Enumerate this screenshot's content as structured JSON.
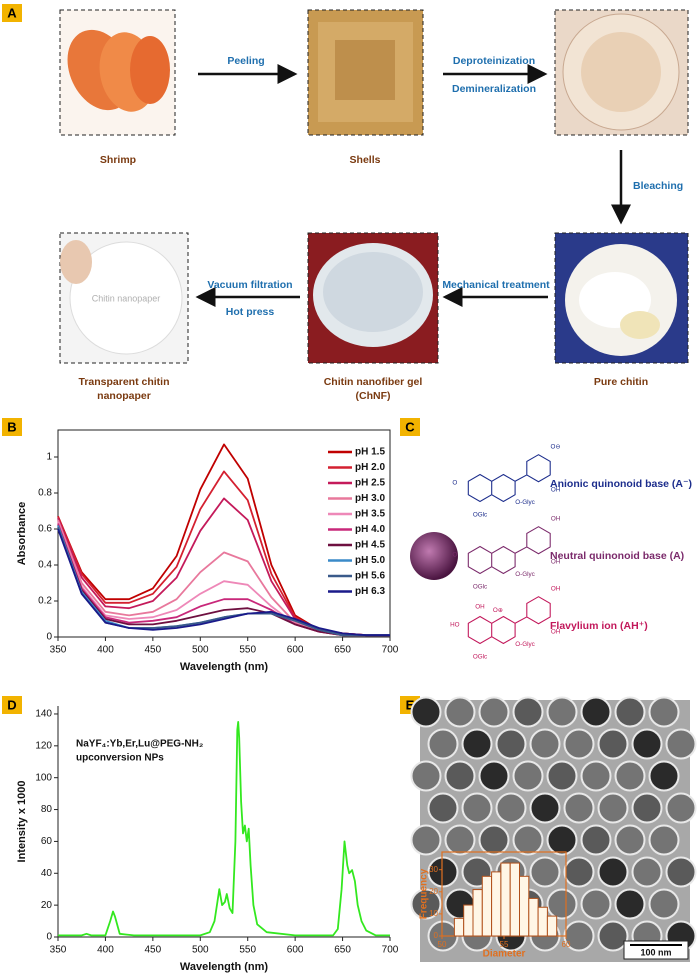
{
  "panels": {
    "a": {
      "label": "A",
      "captions": [
        {
          "lines": [
            "Shrimp"
          ]
        },
        {
          "lines": [
            "Shells"
          ]
        },
        {
          "lines": [
            "Pure chitin"
          ]
        },
        {
          "lines": [
            "Chitin nanofiber gel",
            "(ChNF)"
          ]
        },
        {
          "lines": [
            "Transparent chitin",
            "nanopaper"
          ]
        }
      ],
      "arrows": [
        {
          "labels": [
            "Peeling"
          ]
        },
        {
          "labels": [
            "Deproteinization",
            "Demineralization"
          ]
        },
        {
          "labels": [
            "Bleaching"
          ]
        },
        {
          "labels": [
            "Mechanical treatment"
          ]
        },
        {
          "labels": [
            "Vacuum filtration",
            "Hot press"
          ]
        }
      ],
      "image_text": "Chitin nanopaper"
    },
    "b": {
      "label": "B"
    },
    "c": {
      "label": "C",
      "structures": [
        {
          "name": "Anionic quinonoid base (A⁻)",
          "color": "#1c2d8c",
          "labels": [
            "O",
            "OGlc",
            "O-Glyc",
            "OH",
            "O⊖"
          ]
        },
        {
          "name": "Neutral quinonoid base (A)",
          "color": "#7b2a6b",
          "labels": [
            "O",
            "OGlc",
            "O-Glyc",
            "OH",
            "OH"
          ]
        },
        {
          "name": "Flavylium ion (AH⁺)",
          "color": "#c2185b",
          "labels": [
            "HO",
            "OGlc",
            "O-Glyc",
            "OH",
            "OH",
            "OH",
            "O⊕"
          ]
        }
      ]
    },
    "d": {
      "label": "D"
    },
    "e": {
      "label": "E",
      "scale_bar": "100 nm"
    }
  },
  "chart_data": [
    {
      "type": "line",
      "x_label": "Wavelength (nm)",
      "y_label": "Absorbance",
      "xlim": [
        350,
        700
      ],
      "xticks": [
        350,
        400,
        450,
        500,
        550,
        600,
        650,
        700
      ],
      "ylim": [
        0,
        1.15
      ],
      "yticks": [
        0,
        0.2,
        0.4,
        0.6,
        0.8,
        1
      ],
      "legend": "upper right",
      "x": [
        350,
        375,
        400,
        425,
        450,
        475,
        500,
        525,
        550,
        575,
        600,
        625,
        650,
        675,
        700
      ],
      "series": [
        {
          "name": "pH 1.5",
          "color": "#c00000",
          "values": [
            0.67,
            0.36,
            0.21,
            0.21,
            0.27,
            0.45,
            0.82,
            1.07,
            0.88,
            0.4,
            0.12,
            0.04,
            0.02,
            0.01,
            0.01
          ]
        },
        {
          "name": "pH 2.0",
          "color": "#d42030",
          "values": [
            0.67,
            0.35,
            0.19,
            0.19,
            0.24,
            0.39,
            0.71,
            0.92,
            0.76,
            0.35,
            0.11,
            0.04,
            0.02,
            0.01,
            0.01
          ]
        },
        {
          "name": "pH 2.5",
          "color": "#c41a5a",
          "values": [
            0.66,
            0.33,
            0.17,
            0.16,
            0.2,
            0.33,
            0.59,
            0.77,
            0.65,
            0.31,
            0.1,
            0.04,
            0.02,
            0.01,
            0.01
          ]
        },
        {
          "name": "pH 3.0",
          "color": "#e8789c",
          "values": [
            0.65,
            0.3,
            0.14,
            0.12,
            0.14,
            0.21,
            0.36,
            0.47,
            0.42,
            0.22,
            0.08,
            0.03,
            0.01,
            0.01,
            0.01
          ]
        },
        {
          "name": "pH 3.5",
          "color": "#ee88b8",
          "values": [
            0.64,
            0.28,
            0.12,
            0.1,
            0.11,
            0.15,
            0.24,
            0.31,
            0.29,
            0.17,
            0.07,
            0.03,
            0.01,
            0.01,
            0.01
          ]
        },
        {
          "name": "pH 4.0",
          "color": "#c8287a",
          "values": [
            0.63,
            0.27,
            0.11,
            0.08,
            0.09,
            0.11,
            0.17,
            0.21,
            0.21,
            0.15,
            0.07,
            0.03,
            0.01,
            0.01,
            0.01
          ]
        },
        {
          "name": "pH 4.5",
          "color": "#6e1040",
          "values": [
            0.62,
            0.26,
            0.1,
            0.07,
            0.07,
            0.09,
            0.12,
            0.15,
            0.16,
            0.13,
            0.07,
            0.03,
            0.01,
            0.01,
            0.01
          ]
        },
        {
          "name": "pH 5.0",
          "color": "#3a8ac8",
          "values": [
            0.62,
            0.25,
            0.09,
            0.05,
            0.05,
            0.06,
            0.08,
            0.11,
            0.13,
            0.13,
            0.09,
            0.04,
            0.01,
            0.01,
            0.01
          ]
        },
        {
          "name": "pH 5.6",
          "color": "#3a5a8a",
          "values": [
            0.61,
            0.24,
            0.08,
            0.05,
            0.05,
            0.06,
            0.08,
            0.11,
            0.13,
            0.13,
            0.09,
            0.04,
            0.01,
            0.01,
            0.01
          ]
        },
        {
          "name": "pH 6.3",
          "color": "#1a1a8a",
          "values": [
            0.6,
            0.24,
            0.08,
            0.05,
            0.04,
            0.05,
            0.07,
            0.1,
            0.13,
            0.14,
            0.1,
            0.05,
            0.02,
            0.01,
            0.01
          ]
        }
      ]
    },
    {
      "type": "line",
      "x_label": "Wavelength (nm)",
      "y_label": "Intensity x 1000",
      "annotation": [
        "NaYF₄:Yb,Er,Lu@PEG-NH₂",
        "upconversion NPs"
      ],
      "xlim": [
        350,
        700
      ],
      "xticks": [
        350,
        400,
        450,
        500,
        550,
        600,
        650,
        700
      ],
      "ylim": [
        0,
        145
      ],
      "yticks": [
        0,
        20,
        40,
        60,
        80,
        100,
        120,
        140
      ],
      "x": [
        350,
        375,
        380,
        385,
        400,
        405,
        408,
        410,
        415,
        430,
        500,
        510,
        515,
        518,
        520,
        523,
        526,
        528,
        531,
        534,
        537,
        539,
        540,
        541,
        543,
        545,
        547,
        549,
        551,
        553,
        556,
        560,
        570,
        600,
        640,
        645,
        649,
        652,
        655,
        657,
        660,
        663,
        666,
        670,
        675,
        685,
        700
      ],
      "series": [
        {
          "color": "#33e81f",
          "values": [
            1,
            1,
            2,
            1,
            1,
            10,
            16,
            13,
            2,
            1,
            1,
            3,
            10,
            22,
            30,
            20,
            22,
            27,
            18,
            15,
            60,
            130,
            135,
            125,
            85,
            65,
            70,
            60,
            68,
            45,
            20,
            8,
            3,
            1,
            1,
            5,
            30,
            60,
            45,
            40,
            42,
            35,
            20,
            10,
            4,
            1,
            1
          ]
        }
      ]
    },
    {
      "type": "histogram",
      "x_label": "Diameter",
      "y_label": "Frequency",
      "xlim": [
        50,
        60
      ],
      "xticks": [
        50,
        55,
        60
      ],
      "ylim": [
        0,
        38
      ],
      "yticks": [
        0,
        10,
        20,
        30
      ],
      "color": "#fff6e6",
      "edge_color": "#b0501a",
      "axis_color": "#e07020",
      "bins": [
        51,
        51.75,
        52.5,
        53.25,
        54,
        54.75,
        55.5,
        56.25,
        57,
        57.75,
        58.5,
        59.25
      ],
      "values": [
        8,
        14,
        21,
        27,
        29,
        33,
        33,
        27,
        17,
        13,
        9
      ]
    }
  ]
}
